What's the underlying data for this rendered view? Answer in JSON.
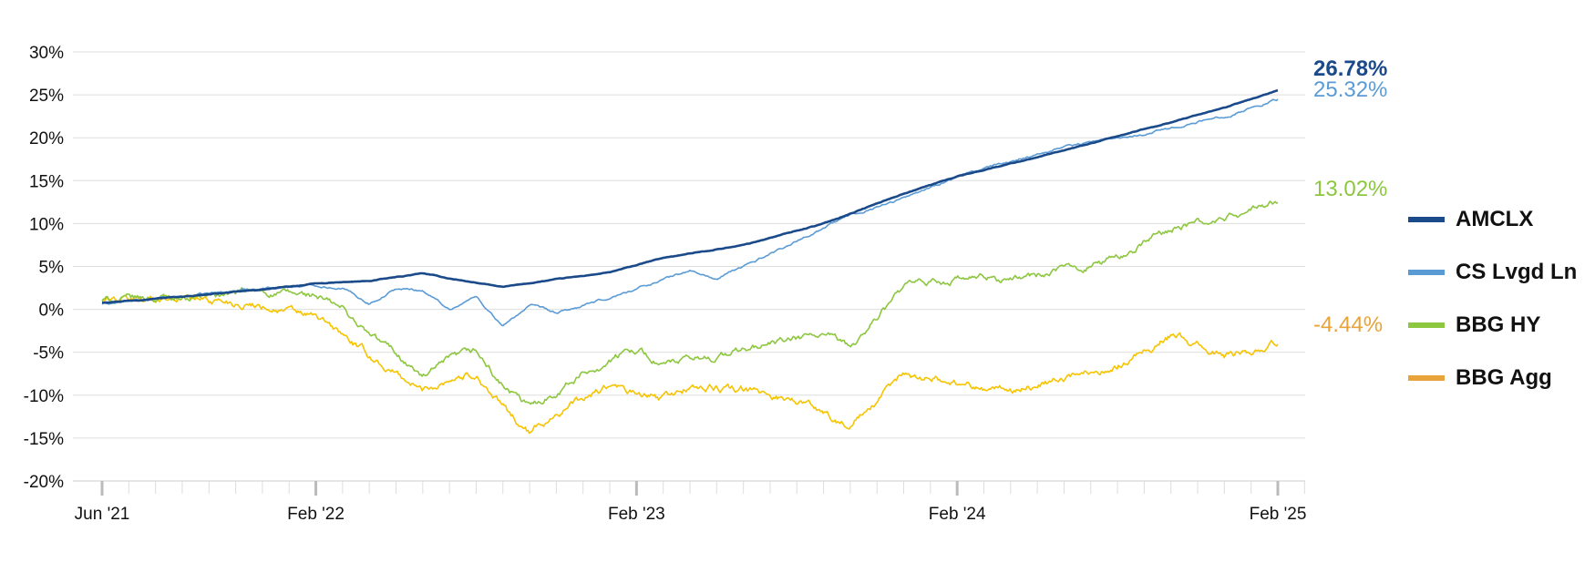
{
  "chart_data": {
    "type": "line",
    "title": "",
    "xlabel": "",
    "ylabel": "",
    "ylim": [
      -20,
      30
    ],
    "xlim": [
      "2021-06",
      "2025-02"
    ],
    "y_ticks": [
      "30%",
      "25%",
      "20%",
      "15%",
      "10%",
      "5%",
      "0%",
      "-5%",
      "-10%",
      "-15%",
      "-20%"
    ],
    "y_tick_values": [
      30,
      25,
      20,
      15,
      10,
      5,
      0,
      -5,
      -10,
      -15,
      -20
    ],
    "x_ticks": [
      "Jun '21",
      "Feb '22",
      "Feb '23",
      "Feb '24",
      "Feb '25"
    ],
    "x_tick_dates": [
      "2021-06",
      "2022-02",
      "2023-02",
      "2024-02",
      "2025-02"
    ],
    "grid": true,
    "legend_position": "right",
    "series": [
      {
        "name": "AMCLX",
        "color": "#1b4a8a",
        "end_label": "26.78%",
        "points": [
          [
            "2021-06",
            0.8
          ],
          [
            "2021-09",
            1.5
          ],
          [
            "2021-12",
            2.3
          ],
          [
            "2022-02",
            3.0
          ],
          [
            "2022-04",
            3.3
          ],
          [
            "2022-06",
            4.2
          ],
          [
            "2022-07",
            3.6
          ],
          [
            "2022-09",
            2.6
          ],
          [
            "2022-11",
            3.5
          ],
          [
            "2023-01",
            4.3
          ],
          [
            "2023-03",
            6.0
          ],
          [
            "2023-06",
            7.5
          ],
          [
            "2023-09",
            10.0
          ],
          [
            "2023-12",
            13.5
          ],
          [
            "2024-02",
            15.5
          ],
          [
            "2024-06",
            18.5
          ],
          [
            "2024-09",
            21.0
          ],
          [
            "2024-12",
            23.5
          ],
          [
            "2025-02",
            25.5
          ]
        ]
      },
      {
        "name": "CS Lvgd Ln",
        "color": "#5b9bd5",
        "end_label": "25.32%",
        "points": [
          [
            "2021-06",
            0.6
          ],
          [
            "2021-09",
            1.5
          ],
          [
            "2021-12",
            2.5
          ],
          [
            "2022-02",
            2.8
          ],
          [
            "2022-03",
            2.5
          ],
          [
            "2022-04",
            0.7
          ],
          [
            "2022-05",
            2.4
          ],
          [
            "2022-06",
            2.2
          ],
          [
            "2022-07",
            0.0
          ],
          [
            "2022-08",
            1.5
          ],
          [
            "2022-09",
            -2.0
          ],
          [
            "2022-10",
            0.5
          ],
          [
            "2022-11",
            -0.5
          ],
          [
            "2023-01",
            1.3
          ],
          [
            "2023-03",
            3.5
          ],
          [
            "2023-04",
            4.5
          ],
          [
            "2023-05",
            3.5
          ],
          [
            "2023-06",
            5.0
          ],
          [
            "2023-08",
            8.0
          ],
          [
            "2023-10",
            11.0
          ],
          [
            "2023-12",
            13.0
          ],
          [
            "2024-02",
            15.5
          ],
          [
            "2024-06",
            19.0
          ],
          [
            "2024-09",
            20.5
          ],
          [
            "2024-12",
            22.5
          ],
          [
            "2025-02",
            24.5
          ]
        ]
      },
      {
        "name": "BBG HY",
        "color": "#8dc63f",
        "end_label": "13.02%",
        "points": [
          [
            "2021-06",
            1.0
          ],
          [
            "2021-09",
            1.5
          ],
          [
            "2021-12",
            2.0
          ],
          [
            "2022-02",
            1.5
          ],
          [
            "2022-03",
            0.0
          ],
          [
            "2022-04",
            -3.0
          ],
          [
            "2022-05",
            -5.0
          ],
          [
            "2022-06",
            -8.0
          ],
          [
            "2022-07",
            -6.0
          ],
          [
            "2022-08",
            -5.0
          ],
          [
            "2022-09",
            -9.0
          ],
          [
            "2022-10",
            -11.5
          ],
          [
            "2022-11",
            -9.5
          ],
          [
            "2022-12",
            -7.5
          ],
          [
            "2023-01",
            -6.0
          ],
          [
            "2023-02",
            -4.5
          ],
          [
            "2023-03",
            -6.5
          ],
          [
            "2023-05",
            -5.5
          ],
          [
            "2023-07",
            -4.0
          ],
          [
            "2023-09",
            -3.0
          ],
          [
            "2023-10",
            -4.5
          ],
          [
            "2023-11",
            -1.0
          ],
          [
            "2023-12",
            2.5
          ],
          [
            "2024-02",
            3.5
          ],
          [
            "2024-04",
            3.5
          ],
          [
            "2024-06",
            4.5
          ],
          [
            "2024-08",
            6.0
          ],
          [
            "2024-10",
            9.5
          ],
          [
            "2024-12",
            10.5
          ],
          [
            "2025-02",
            12.5
          ]
        ]
      },
      {
        "name": "BBG Agg",
        "color": "#f5c400",
        "legend_color": "#e8a33a",
        "label_color": "#e8a33a",
        "end_label": "-4.44%",
        "points": [
          [
            "2021-06",
            1.0
          ],
          [
            "2021-09",
            1.5
          ],
          [
            "2021-12",
            0.5
          ],
          [
            "2022-02",
            -1.0
          ],
          [
            "2022-03",
            -3.0
          ],
          [
            "2022-04",
            -5.5
          ],
          [
            "2022-05",
            -7.5
          ],
          [
            "2022-06",
            -9.5
          ],
          [
            "2022-07",
            -8.0
          ],
          [
            "2022-08",
            -7.5
          ],
          [
            "2022-09",
            -11.5
          ],
          [
            "2022-10",
            -14.5
          ],
          [
            "2022-11",
            -12.0
          ],
          [
            "2022-12",
            -10.5
          ],
          [
            "2023-01",
            -9.0
          ],
          [
            "2023-02",
            -10.0
          ],
          [
            "2023-03",
            -10.5
          ],
          [
            "2023-04",
            -9.0
          ],
          [
            "2023-06",
            -9.5
          ],
          [
            "2023-08",
            -10.5
          ],
          [
            "2023-10",
            -13.5
          ],
          [
            "2023-11",
            -11.0
          ],
          [
            "2023-12",
            -7.5
          ],
          [
            "2024-02",
            -8.5
          ],
          [
            "2024-04",
            -9.5
          ],
          [
            "2024-06",
            -8.0
          ],
          [
            "2024-08",
            -6.5
          ],
          [
            "2024-10",
            -3.0
          ],
          [
            "2024-12",
            -5.5
          ],
          [
            "2025-02",
            -4.0
          ]
        ]
      }
    ]
  }
}
